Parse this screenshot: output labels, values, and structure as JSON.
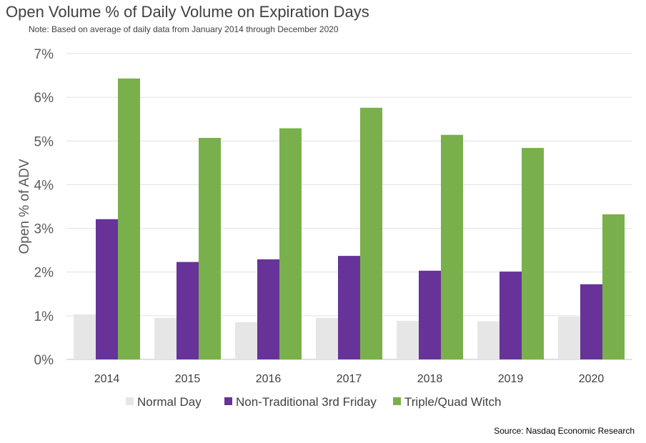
{
  "title": "Open Volume % of Daily Volume on Expiration Days",
  "note": "Note: Based on average of daily data from January 2014 through December 2020",
  "source": "Source: Nasdaq Economic Research",
  "chart_data": {
    "type": "bar",
    "title": "Open Volume % of Daily Volume on Expiration Days",
    "ylabel": "Open % of ADV",
    "xlabel": "",
    "ylim": [
      0,
      7
    ],
    "yticks": [
      "0%",
      "1%",
      "2%",
      "3%",
      "4%",
      "5%",
      "6%",
      "7%"
    ],
    "grid": true,
    "legend_position": "bottom",
    "categories": [
      "2014",
      "2015",
      "2016",
      "2017",
      "2018",
      "2019",
      "2020"
    ],
    "series": [
      {
        "name": "Normal Day",
        "color": "#e6e6e6",
        "values": [
          1.03,
          0.95,
          0.85,
          0.95,
          0.88,
          0.87,
          0.98
        ]
      },
      {
        "name": "Non-Traditional 3rd Friday",
        "color": "#673399",
        "values": [
          3.21,
          2.23,
          2.29,
          2.37,
          2.03,
          2.01,
          1.72
        ]
      },
      {
        "name": "Triple/Quad Witch",
        "color": "#79b04b",
        "values": [
          6.43,
          5.07,
          5.29,
          5.76,
          5.14,
          4.84,
          3.32
        ]
      }
    ]
  }
}
